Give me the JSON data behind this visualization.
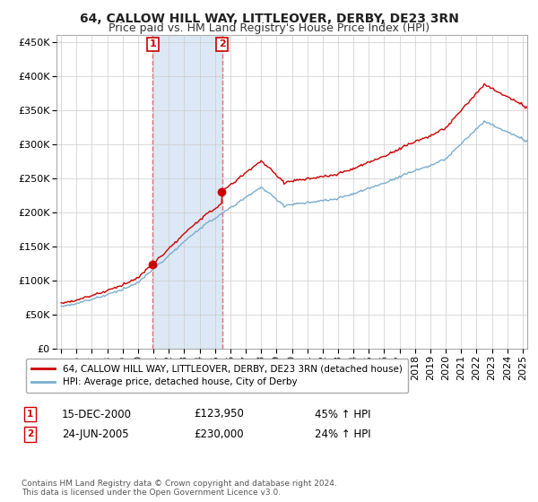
{
  "title": "64, CALLOW HILL WAY, LITTLEOVER, DERBY, DE23 3RN",
  "subtitle": "Price paid vs. HM Land Registry's House Price Index (HPI)",
  "sale1_label": "15-DEC-2000",
  "sale1_price": 123950,
  "sale1_hpi_change": "45% ↑ HPI",
  "sale2_label": "24-JUN-2005",
  "sale2_price": 230000,
  "sale2_hpi_change": "24% ↑ HPI",
  "legend_line1": "64, CALLOW HILL WAY, LITTLEOVER, DERBY, DE23 3RN (detached house)",
  "legend_line2": "HPI: Average price, detached house, City of Derby",
  "footer": "Contains HM Land Registry data © Crown copyright and database right 2024.\nThis data is licensed under the Open Government Licence v3.0.",
  "ylim": [
    0,
    460000
  ],
  "yticks": [
    0,
    50000,
    100000,
    150000,
    200000,
    250000,
    300000,
    350000,
    400000,
    450000
  ],
  "red_color": "#cc0000",
  "blue_color": "#7aadcf",
  "shade_color": "#dce8f5",
  "dashed_color": "#e07070",
  "grid_color": "#cccccc",
  "background_color": "#ffffff",
  "title_fontsize": 10,
  "subtitle_fontsize": 9,
  "tick_fontsize": 8
}
